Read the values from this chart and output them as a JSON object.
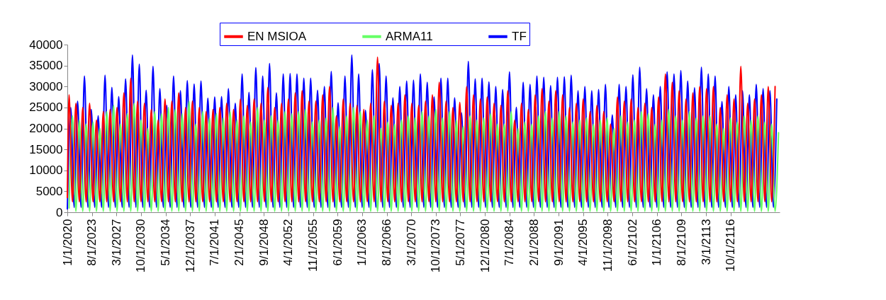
{
  "chart_data": {
    "type": "line",
    "legend": "top",
    "xlim": [
      "2020-01",
      "2123-12"
    ],
    "xticks": [
      {
        "value": "2020-01-01",
        "label": "1/1/2020"
      },
      {
        "value": "2023-08-01",
        "label": "8/1/2023"
      },
      {
        "value": "2027-03-01",
        "label": "3/1/2027"
      },
      {
        "value": "2030-10-01",
        "label": "10/1/2030"
      },
      {
        "value": "2034-05-01",
        "label": "5/1/2034"
      },
      {
        "value": "2037-12-01",
        "label": "12/1/2037"
      },
      {
        "value": "2041-07-01",
        "label": "7/1/2041"
      },
      {
        "value": "2045-02-01",
        "label": "2/1/2045"
      },
      {
        "value": "2048-09-01",
        "label": "9/1/2048"
      },
      {
        "value": "2052-04-01",
        "label": "4/1/2052"
      },
      {
        "value": "2055-11-01",
        "label": "11/1/2055"
      },
      {
        "value": "2059-06-01",
        "label": "6/1/2059"
      },
      {
        "value": "2063-01-01",
        "label": "1/1/2063"
      },
      {
        "value": "2066-08-01",
        "label": "8/1/2066"
      },
      {
        "value": "2070-03-01",
        "label": "3/1/2070"
      },
      {
        "value": "2073-10-01",
        "label": "10/1/2073"
      },
      {
        "value": "2077-05-01",
        "label": "5/1/2077"
      },
      {
        "value": "2080-12-01",
        "label": "12/1/2080"
      },
      {
        "value": "2084-07-01",
        "label": "7/1/2084"
      },
      {
        "value": "2088-02-01",
        "label": "2/1/2088"
      },
      {
        "value": "2091-09-01",
        "label": "9/1/2091"
      },
      {
        "value": "2095-04-01",
        "label": "4/1/2095"
      },
      {
        "value": "2098-11-01",
        "label": "11/1/2098"
      },
      {
        "value": "2102-06-01",
        "label": "6/1/2102"
      },
      {
        "value": "2106-01-01",
        "label": "1/1/2106"
      },
      {
        "value": "2109-08-01",
        "label": "8/1/2109"
      },
      {
        "value": "2113-03-01",
        "label": "3/1/2113"
      },
      {
        "value": "2116-10-01",
        "label": "10/1/2116"
      }
    ],
    "ylim": [
      0,
      40000
    ],
    "yticks": [
      0,
      5000,
      10000,
      15000,
      20000,
      25000,
      30000,
      35000,
      40000
    ],
    "series": [
      {
        "name": "EN MSIOA",
        "color": "#ff0000",
        "x": [
          "2020-01",
          "2020-04",
          "2020-10",
          "2021-04",
          "2021-10",
          "2022-04",
          "2022-10",
          "2023-04",
          "2023-10",
          "2024-04",
          "2024-10",
          "2025-04",
          "2025-10",
          "2026-04",
          "2026-10",
          "2027-04",
          "2027-10",
          "2028-04",
          "2028-10",
          "2029-04",
          "2029-10",
          "2030-04",
          "2030-10",
          "2031-04",
          "2031-10",
          "2032-04",
          "2032-10",
          "2033-04",
          "2033-10",
          "2034-04",
          "2034-10",
          "2035-04",
          "2035-10",
          "2036-04",
          "2036-10",
          "2037-04",
          "2037-10",
          "2038-04",
          "2038-10",
          "2039-04",
          "2039-10",
          "2040-04",
          "2040-10",
          "2041-04",
          "2041-10",
          "2042-04",
          "2042-10",
          "2043-04",
          "2043-10",
          "2044-04",
          "2044-10",
          "2045-04",
          "2045-10",
          "2046-04",
          "2046-10",
          "2047-04",
          "2047-10",
          "2048-04",
          "2048-10",
          "2049-04",
          "2049-10",
          "2050-04",
          "2050-10",
          "2051-04",
          "2051-10",
          "2052-04",
          "2052-10",
          "2053-04",
          "2053-10",
          "2054-04",
          "2054-10",
          "2055-04",
          "2055-10",
          "2056-04",
          "2056-10",
          "2057-04",
          "2057-10",
          "2058-04",
          "2058-10",
          "2059-04",
          "2059-10",
          "2060-04",
          "2060-10",
          "2061-04",
          "2061-10",
          "2062-04",
          "2062-10",
          "2063-04",
          "2063-10",
          "2064-04",
          "2064-10",
          "2065-04",
          "2065-10",
          "2066-04",
          "2066-10",
          "2067-04",
          "2067-10",
          "2068-04",
          "2068-10",
          "2069-04",
          "2069-10",
          "2070-04",
          "2070-10",
          "2071-04",
          "2071-10",
          "2072-04",
          "2072-10",
          "2073-04",
          "2073-10",
          "2074-04",
          "2074-10",
          "2075-04",
          "2075-10",
          "2076-04",
          "2076-10",
          "2077-04",
          "2077-10",
          "2078-04",
          "2078-10",
          "2079-04",
          "2079-10",
          "2080-04",
          "2080-10",
          "2081-04",
          "2081-10",
          "2082-04",
          "2082-10",
          "2083-04",
          "2083-10",
          "2084-04",
          "2084-10",
          "2085-04",
          "2085-10",
          "2086-04",
          "2086-10",
          "2087-04",
          "2087-10",
          "2088-04",
          "2088-10",
          "2089-04",
          "2089-10",
          "2090-04",
          "2090-10",
          "2091-04",
          "2091-10",
          "2092-04",
          "2092-10",
          "2093-04",
          "2093-10",
          "2094-04",
          "2094-10",
          "2095-04",
          "2095-10",
          "2096-04",
          "2096-10",
          "2097-04",
          "2097-10",
          "2098-04",
          "2098-10",
          "2099-04",
          "2099-10",
          "2100-04",
          "2100-10",
          "2101-04",
          "2101-10",
          "2102-04",
          "2102-10",
          "2103-04",
          "2103-10",
          "2104-04",
          "2104-10",
          "2105-04",
          "2105-10",
          "2106-04",
          "2106-10",
          "2107-04",
          "2107-10",
          "2108-04",
          "2108-10",
          "2109-04",
          "2109-10",
          "2110-04",
          "2110-10",
          "2111-04",
          "2111-10",
          "2112-04",
          "2112-10",
          "2113-04",
          "2113-10",
          "2114-04",
          "2114-10",
          "2115-04",
          "2115-10",
          "2116-04",
          "2116-10",
          "2117-04",
          "2117-10",
          "2118-04",
          "2118-10",
          "2119-04",
          "2119-10",
          "2120-04",
          "2120-10",
          "2121-04",
          "2121-10",
          "2122-04",
          "2122-10",
          "2123-04"
        ],
        "values": [
          3500,
          28000,
          2500,
          26000,
          2500,
          25000,
          2500,
          26000,
          2500,
          22000,
          2500,
          24000,
          2500,
          24500,
          2500,
          25000,
          2500,
          28500,
          2500,
          32000,
          2500,
          26500,
          2500,
          26000,
          2500,
          24500,
          2500,
          22000,
          2500,
          27000,
          2500,
          26500,
          2500,
          28500,
          2500,
          25000,
          2500,
          26500,
          2500,
          25000,
          2500,
          24000,
          2500,
          24500,
          2500,
          25000,
          2500,
          26000,
          2500,
          24500,
          2500,
          27000,
          2500,
          25500,
          2500,
          27000,
          2500,
          26000,
          2500,
          29800,
          2500,
          25000,
          2500,
          26000,
          2500,
          27000,
          2500,
          28500,
          2500,
          29000,
          2500,
          26500,
          2500,
          26500,
          2500,
          28000,
          2500,
          30000,
          2500,
          23000,
          2500,
          27000,
          2500,
          26000,
          2500,
          25500,
          2500,
          24500,
          2500,
          26000,
          2500,
          37000,
          2500,
          26500,
          2500,
          25500,
          2500,
          26000,
          2500,
          28000,
          2500,
          26000,
          2500,
          25500,
          2500,
          26500,
          2500,
          28000,
          2500,
          31000,
          2500,
          26500,
          2500,
          25000,
          2500,
          26200,
          2500,
          30000,
          2500,
          28000,
          2500,
          27000,
          2500,
          27500,
          2500,
          26000,
          2500,
          25500,
          2500,
          29000,
          2500,
          22000,
          2500,
          26000,
          2500,
          24500,
          2500,
          28000,
          2500,
          29500,
          2500,
          26500,
          2500,
          29000,
          2500,
          28000,
          2500,
          25000,
          2500,
          26000,
          2500,
          27000,
          2500,
          24000,
          2500,
          25500,
          2500,
          24000,
          2500,
          21000,
          2500,
          27500,
          2500,
          26500,
          2500,
          27000,
          2500,
          25000,
          2500,
          26000,
          2500,
          25000,
          2500,
          27500,
          2500,
          33000,
          2500,
          31000,
          2500,
          29000,
          2500,
          27000,
          2500,
          28500,
          2500,
          30000,
          2500,
          29500,
          2500,
          30000,
          2500,
          25000,
          2500,
          28000,
          2500,
          27000,
          2500,
          34800,
          2500,
          26000,
          2500,
          27000,
          2500,
          28000,
          2500,
          30000,
          2500,
          30000
        ]
      },
      {
        "name": "ARMA11",
        "color": "#66ff66",
        "x": [
          "2020-04",
          "2020-10",
          "2021-04",
          "2021-10",
          "2022-04",
          "2022-10",
          "2023-04",
          "2023-10",
          "2024-04",
          "2024-10",
          "2025-04",
          "2025-10",
          "2026-04",
          "2026-10",
          "2027-04",
          "2027-10",
          "2028-04",
          "2028-10",
          "2029-04",
          "2029-10",
          "2030-04",
          "2030-10",
          "2031-04",
          "2031-10",
          "2032-04",
          "2032-10",
          "2033-04",
          "2033-10",
          "2034-04",
          "2034-10",
          "2035-04",
          "2035-10",
          "2036-04",
          "2036-10",
          "2037-04",
          "2037-10",
          "2038-04",
          "2038-10",
          "2039-04",
          "2039-10",
          "2040-04",
          "2040-10",
          "2041-04",
          "2041-10",
          "2042-04",
          "2042-10",
          "2043-04",
          "2043-10",
          "2044-04",
          "2044-10",
          "2045-04",
          "2045-10",
          "2046-04",
          "2046-10",
          "2047-04",
          "2047-10",
          "2048-04",
          "2048-10",
          "2049-04",
          "2049-10",
          "2050-04",
          "2050-10",
          "2051-04",
          "2051-10",
          "2052-04",
          "2052-10",
          "2053-04",
          "2053-10",
          "2054-04",
          "2054-10",
          "2055-04",
          "2055-10",
          "2056-04",
          "2056-10",
          "2057-04",
          "2057-10",
          "2058-04",
          "2058-10",
          "2059-04",
          "2059-10",
          "2060-04",
          "2060-10",
          "2061-04",
          "2061-10",
          "2062-04",
          "2062-10",
          "2063-04",
          "2063-10",
          "2064-04",
          "2064-10",
          "2065-04",
          "2065-10",
          "2066-04",
          "2066-10",
          "2067-04",
          "2067-10",
          "2068-04",
          "2068-10",
          "2069-04",
          "2069-10",
          "2070-04",
          "2070-10",
          "2071-04",
          "2071-10",
          "2072-04",
          "2072-10",
          "2073-04",
          "2073-10",
          "2074-04",
          "2074-10",
          "2075-04",
          "2075-10",
          "2076-04",
          "2076-10",
          "2077-04",
          "2077-10",
          "2078-04",
          "2078-10",
          "2079-04",
          "2079-10",
          "2080-04",
          "2080-10",
          "2081-04",
          "2081-10",
          "2082-04",
          "2082-10",
          "2083-04",
          "2083-10",
          "2084-04",
          "2084-10",
          "2085-04",
          "2085-10",
          "2086-04",
          "2086-10",
          "2087-04",
          "2087-10",
          "2088-04",
          "2088-10",
          "2089-04",
          "2089-10",
          "2090-04",
          "2090-10",
          "2091-04",
          "2091-10",
          "2092-04",
          "2092-10",
          "2093-04",
          "2093-10",
          "2094-04",
          "2094-10",
          "2095-04",
          "2095-10",
          "2096-04",
          "2096-10",
          "2097-04",
          "2097-10",
          "2098-04",
          "2098-10",
          "2099-04",
          "2099-10",
          "2100-04",
          "2100-10",
          "2101-04",
          "2101-10",
          "2102-04",
          "2102-10",
          "2103-04",
          "2103-10",
          "2104-04",
          "2104-10",
          "2105-04",
          "2105-10",
          "2106-04",
          "2106-10",
          "2107-04",
          "2107-10",
          "2108-04",
          "2108-10",
          "2109-04",
          "2109-10",
          "2110-04",
          "2110-10",
          "2111-04",
          "2111-10",
          "2112-04",
          "2112-10",
          "2113-04",
          "2113-10",
          "2114-04",
          "2114-10",
          "2115-04",
          "2115-10",
          "2116-04",
          "2116-10",
          "2117-04",
          "2117-10",
          "2118-04",
          "2118-10",
          "2119-04",
          "2119-10",
          "2120-04",
          "2120-10",
          "2121-04",
          "2121-10",
          "2122-04",
          "2122-10",
          "2123-04",
          "2123-10"
        ],
        "values": [
          1000,
          23000,
          200,
          22000,
          200,
          21000,
          200,
          21500,
          200,
          20000,
          200,
          24000,
          200,
          25500,
          200,
          21000,
          200,
          23500,
          200,
          26000,
          200,
          22000,
          200,
          20000,
          200,
          24000,
          200,
          23500,
          200,
          25000,
          200,
          24500,
          200,
          23500,
          200,
          26500,
          200,
          21000,
          200,
          24000,
          200,
          22500,
          200,
          23500,
          200,
          22500,
          200,
          24000,
          200,
          22000,
          200,
          23000,
          200,
          21500,
          200,
          25000,
          200,
          22000,
          200,
          23000,
          200,
          22000,
          200,
          24000,
          200,
          23500,
          200,
          24000,
          200,
          24500,
          200,
          21500,
          200,
          22000,
          200,
          22500,
          200,
          25000,
          200,
          20500,
          200,
          23000,
          200,
          25000,
          200,
          24000,
          200,
          22000,
          200,
          23000,
          200,
          20000,
          200,
          21500,
          200,
          21000,
          200,
          22000,
          200,
          23000,
          200,
          22500,
          200,
          24000,
          200,
          23000,
          200,
          24500,
          200,
          22500,
          200,
          24000,
          200,
          22000,
          200,
          20500,
          200,
          23000,
          200,
          22000,
          200,
          22500,
          200,
          23500,
          200,
          21000,
          200,
          21000,
          200,
          24000,
          200,
          20000,
          200,
          21500,
          200,
          21000,
          200,
          23000,
          200,
          24000,
          200,
          22500,
          200,
          24000,
          200,
          23000,
          200,
          21500,
          200,
          22000,
          200,
          22500,
          200,
          21000,
          200,
          22000,
          200,
          22500,
          200,
          20000,
          200,
          23000,
          200,
          21500,
          200,
          22000,
          200,
          24000,
          200,
          23500,
          200,
          21000,
          200,
          22000,
          200,
          24500,
          200,
          23000,
          200,
          22000,
          200,
          24000,
          200,
          22500,
          200,
          23000,
          200,
          23000,
          200,
          21000,
          200,
          20000,
          200,
          22500,
          200,
          21500,
          200,
          23000,
          200,
          22000,
          200,
          23000,
          200,
          21500,
          200,
          21000,
          200,
          19000
        ]
      },
      {
        "name": "TF",
        "color": "#0000ff",
        "x": [
          "2020-01",
          "2020-07",
          "2021-01",
          "2021-07",
          "2022-01",
          "2022-07",
          "2023-01",
          "2023-07",
          "2024-01",
          "2024-07",
          "2025-01",
          "2025-07",
          "2026-01",
          "2026-07",
          "2027-01",
          "2027-07",
          "2028-01",
          "2028-07",
          "2029-01",
          "2029-07",
          "2030-01",
          "2030-07",
          "2031-01",
          "2031-07",
          "2032-01",
          "2032-07",
          "2033-01",
          "2033-07",
          "2034-01",
          "2034-07",
          "2035-01",
          "2035-07",
          "2036-01",
          "2036-07",
          "2037-01",
          "2037-07",
          "2038-01",
          "2038-07",
          "2039-01",
          "2039-07",
          "2040-01",
          "2040-07",
          "2041-01",
          "2041-07",
          "2042-01",
          "2042-07",
          "2043-01",
          "2043-07",
          "2044-01",
          "2044-07",
          "2045-01",
          "2045-07",
          "2046-01",
          "2046-07",
          "2047-01",
          "2047-07",
          "2048-01",
          "2048-07",
          "2049-01",
          "2049-07",
          "2050-01",
          "2050-07",
          "2051-01",
          "2051-07",
          "2052-01",
          "2052-07",
          "2053-01",
          "2053-07",
          "2054-01",
          "2054-07",
          "2055-01",
          "2055-07",
          "2056-01",
          "2056-07",
          "2057-01",
          "2057-07",
          "2058-01",
          "2058-07",
          "2059-01",
          "2059-07",
          "2060-01",
          "2060-07",
          "2061-01",
          "2061-07",
          "2062-01",
          "2062-07",
          "2063-01",
          "2063-07",
          "2064-01",
          "2064-07",
          "2065-01",
          "2065-07",
          "2066-01",
          "2066-07",
          "2067-01",
          "2067-07",
          "2068-01",
          "2068-07",
          "2069-01",
          "2069-07",
          "2070-01",
          "2070-07",
          "2071-01",
          "2071-07",
          "2072-01",
          "2072-07",
          "2073-01",
          "2073-07",
          "2074-01",
          "2074-07",
          "2075-01",
          "2075-07",
          "2076-01",
          "2076-07",
          "2077-01",
          "2077-07",
          "2078-01",
          "2078-07",
          "2079-01",
          "2079-07",
          "2080-01",
          "2080-07",
          "2081-01",
          "2081-07",
          "2082-01",
          "2082-07",
          "2083-01",
          "2083-07",
          "2084-01",
          "2084-07",
          "2085-01",
          "2085-07",
          "2086-01",
          "2086-07",
          "2087-01",
          "2087-07",
          "2088-01",
          "2088-07",
          "2089-01",
          "2089-07",
          "2090-01",
          "2090-07",
          "2091-01",
          "2091-07",
          "2092-01",
          "2092-07",
          "2093-01",
          "2093-07",
          "2094-01",
          "2094-07",
          "2095-01",
          "2095-07",
          "2096-01",
          "2096-07",
          "2097-01",
          "2097-07",
          "2098-01",
          "2098-07",
          "2099-01",
          "2099-07",
          "2100-01",
          "2100-07",
          "2101-01",
          "2101-07",
          "2102-01",
          "2102-07",
          "2103-01",
          "2103-07",
          "2104-01",
          "2104-07",
          "2105-01",
          "2105-07",
          "2106-01",
          "2106-07",
          "2107-01",
          "2107-07",
          "2108-01",
          "2108-07",
          "2109-01",
          "2109-07",
          "2110-01",
          "2110-07",
          "2111-01",
          "2111-07",
          "2112-01",
          "2112-07",
          "2113-01",
          "2113-07",
          "2114-01",
          "2114-07",
          "2115-01",
          "2115-07",
          "2116-01",
          "2116-07",
          "2117-01",
          "2117-07",
          "2118-01",
          "2118-07",
          "2119-01",
          "2119-07",
          "2120-01",
          "2120-07",
          "2121-01",
          "2121-07",
          "2122-01",
          "2122-07",
          "2123-01",
          "2123-07"
        ],
        "values": [
          800,
          25000,
          1200,
          26500,
          1200,
          32500,
          1200,
          24500,
          1200,
          23000,
          1200,
          32700,
          1200,
          29800,
          1200,
          27600,
          1200,
          31800,
          1200,
          37500,
          1200,
          35300,
          1200,
          29100,
          1200,
          34800,
          1200,
          29500,
          1200,
          25500,
          1200,
          32500,
          1200,
          29000,
          1200,
          31400,
          1200,
          30600,
          1200,
          31300,
          1200,
          27200,
          1200,
          27500,
          1200,
          27600,
          1200,
          29500,
          1200,
          26000,
          1200,
          33000,
          1200,
          28600,
          1200,
          34500,
          1200,
          32500,
          1200,
          35500,
          1200,
          28500,
          1200,
          33000,
          1200,
          33100,
          1200,
          33000,
          1200,
          32000,
          1200,
          32000,
          1200,
          29100,
          1200,
          30000,
          1200,
          33600,
          1200,
          26100,
          1200,
          32500,
          1200,
          37500,
          1200,
          33000,
          1200,
          24300,
          1200,
          34000,
          1200,
          35500,
          1200,
          32500,
          1200,
          27300,
          1200,
          30000,
          1200,
          31300,
          1200,
          31500,
          1200,
          33000,
          1200,
          31000,
          1200,
          27500,
          1200,
          32000,
          1200,
          32000,
          1200,
          27300,
          1200,
          23700,
          1200,
          36000,
          1200,
          31800,
          1200,
          32000,
          1200,
          31100,
          1200,
          30000,
          1200,
          29300,
          1200,
          33500,
          1200,
          25000,
          1200,
          31000,
          1200,
          30500,
          1200,
          32500,
          1200,
          32200,
          1200,
          30200,
          1200,
          32200,
          1200,
          32300,
          1200,
          32700,
          1200,
          29000,
          1200,
          30000,
          1200,
          29000,
          1200,
          29300,
          1200,
          30500,
          1200,
          23200,
          1200,
          30500,
          1200,
          30000,
          1200,
          32800,
          1200,
          34600,
          1200,
          29500,
          1200,
          28000,
          1200,
          30000,
          1200,
          33500,
          1200,
          33000,
          1200,
          33800,
          1200,
          31300,
          1200,
          29700,
          1200,
          34600,
          1200,
          33000,
          1200,
          32500,
          1200,
          26400,
          1200,
          30000,
          1200,
          28000,
          1200,
          29000,
          1200,
          28000,
          1200,
          30500,
          1200,
          29500,
          1200,
          29000,
          1200,
          27000
        ]
      }
    ]
  }
}
